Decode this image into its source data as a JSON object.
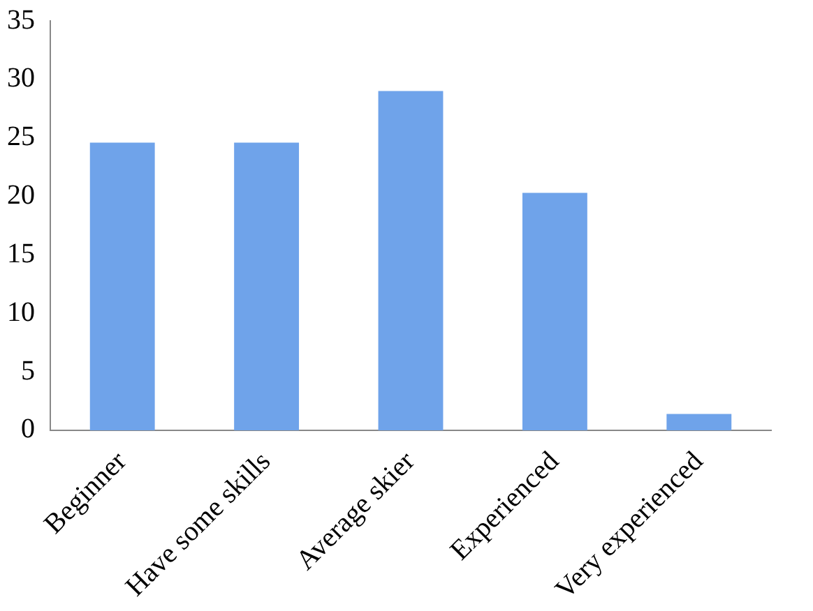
{
  "chart_data": {
    "type": "bar",
    "categories": [
      "Beginner",
      "Have some skills",
      "Average skier",
      "Experienced",
      "Very experienced"
    ],
    "values": [
      24.6,
      24.6,
      29,
      20.3,
      1.4
    ],
    "color": "#6fa3ea",
    "ylim": [
      0,
      35
    ],
    "yticks": [
      0,
      5,
      10,
      15,
      20,
      25,
      30,
      35
    ],
    "grid": false,
    "legend": false
  }
}
